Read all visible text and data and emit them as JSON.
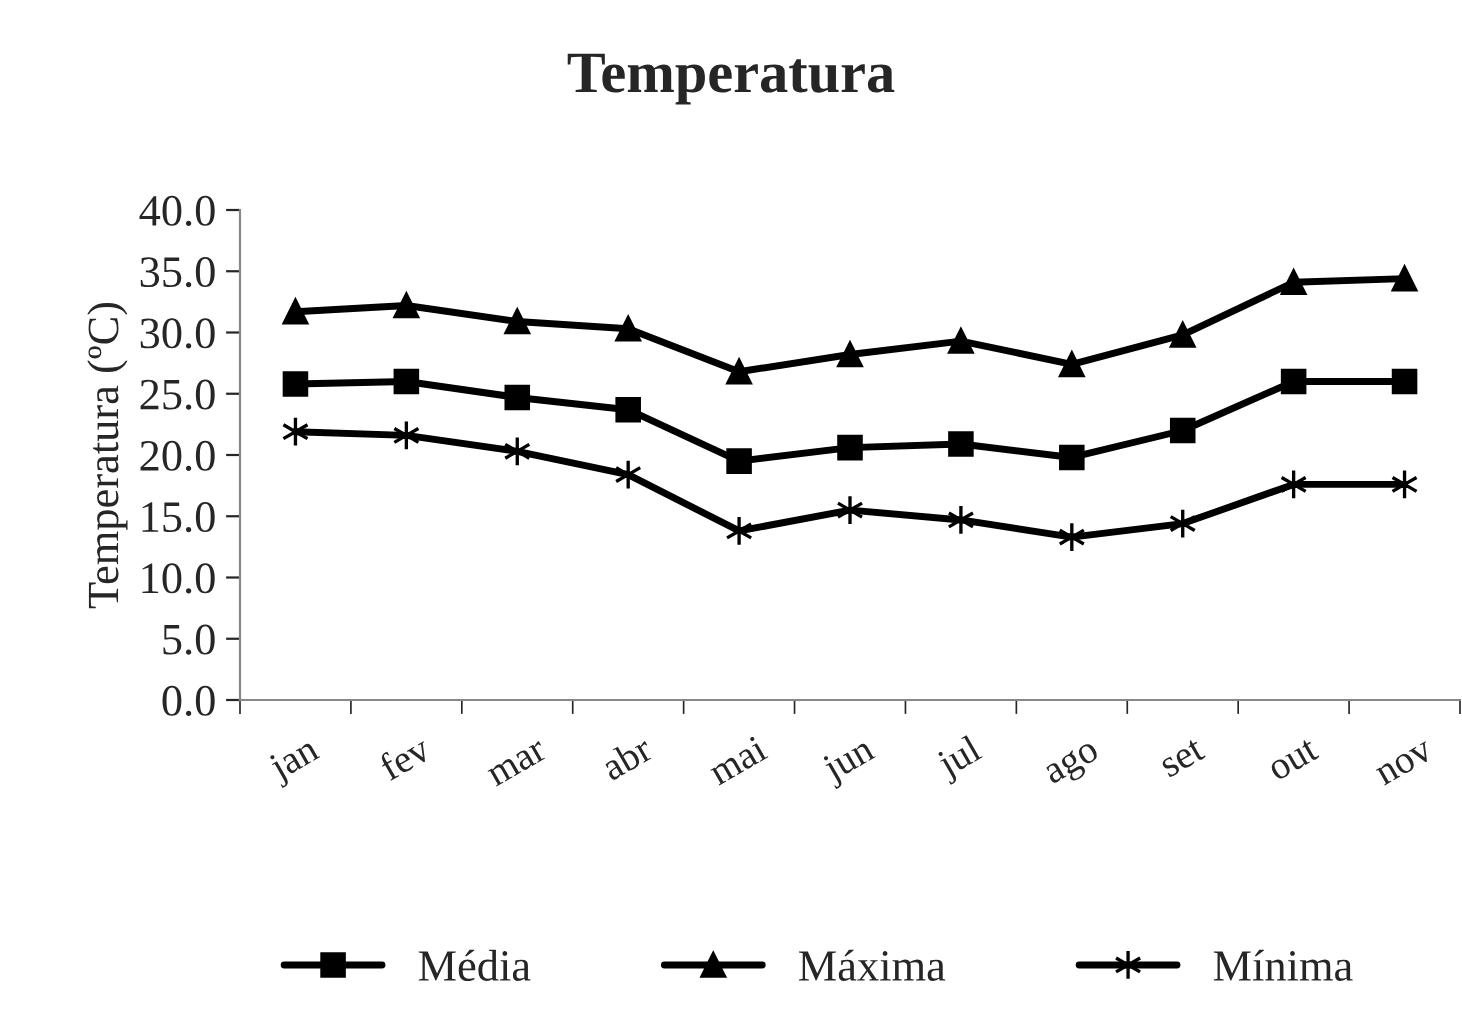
{
  "chart_data": {
    "type": "line",
    "title": "Temperatura",
    "ylabel": "Temperatura (ºC)",
    "categories": [
      "jan",
      "fev",
      "mar",
      "abr",
      "mai",
      "jun",
      "jul",
      "ago",
      "set",
      "out",
      "nov"
    ],
    "series": [
      {
        "name": "Média",
        "color": "#000000",
        "marker": "square",
        "values": [
          25.8,
          26.0,
          24.7,
          23.7,
          19.5,
          20.6,
          20.9,
          19.8,
          22.0,
          26.0,
          26.0
        ]
      },
      {
        "name": "Máxima",
        "color": "#000000",
        "marker": "triangle",
        "values": [
          31.7,
          32.2,
          30.9,
          30.3,
          26.8,
          28.2,
          29.3,
          27.4,
          29.8,
          34.1,
          34.4
        ]
      },
      {
        "name": "Mínima",
        "color": "#000000",
        "marker": "cross",
        "values": [
          21.9,
          21.6,
          20.3,
          18.4,
          13.8,
          15.5,
          14.7,
          13.3,
          14.4,
          17.6,
          17.6
        ]
      }
    ],
    "ylim": [
      0,
      40
    ],
    "yticks": [
      {
        "value": 0,
        "label": "0.0"
      },
      {
        "value": 5,
        "label": "5.0"
      },
      {
        "value": 10,
        "label": "10.0"
      },
      {
        "value": 15,
        "label": "15.0"
      },
      {
        "value": 20,
        "label": "20.0"
      },
      {
        "value": 25,
        "label": "25.0"
      },
      {
        "value": 30,
        "label": "30.0"
      },
      {
        "value": 35,
        "label": "35.0"
      },
      {
        "value": 40,
        "label": "40.0"
      }
    ],
    "grid": false,
    "legend": "bottom",
    "line_style": "solid"
  }
}
